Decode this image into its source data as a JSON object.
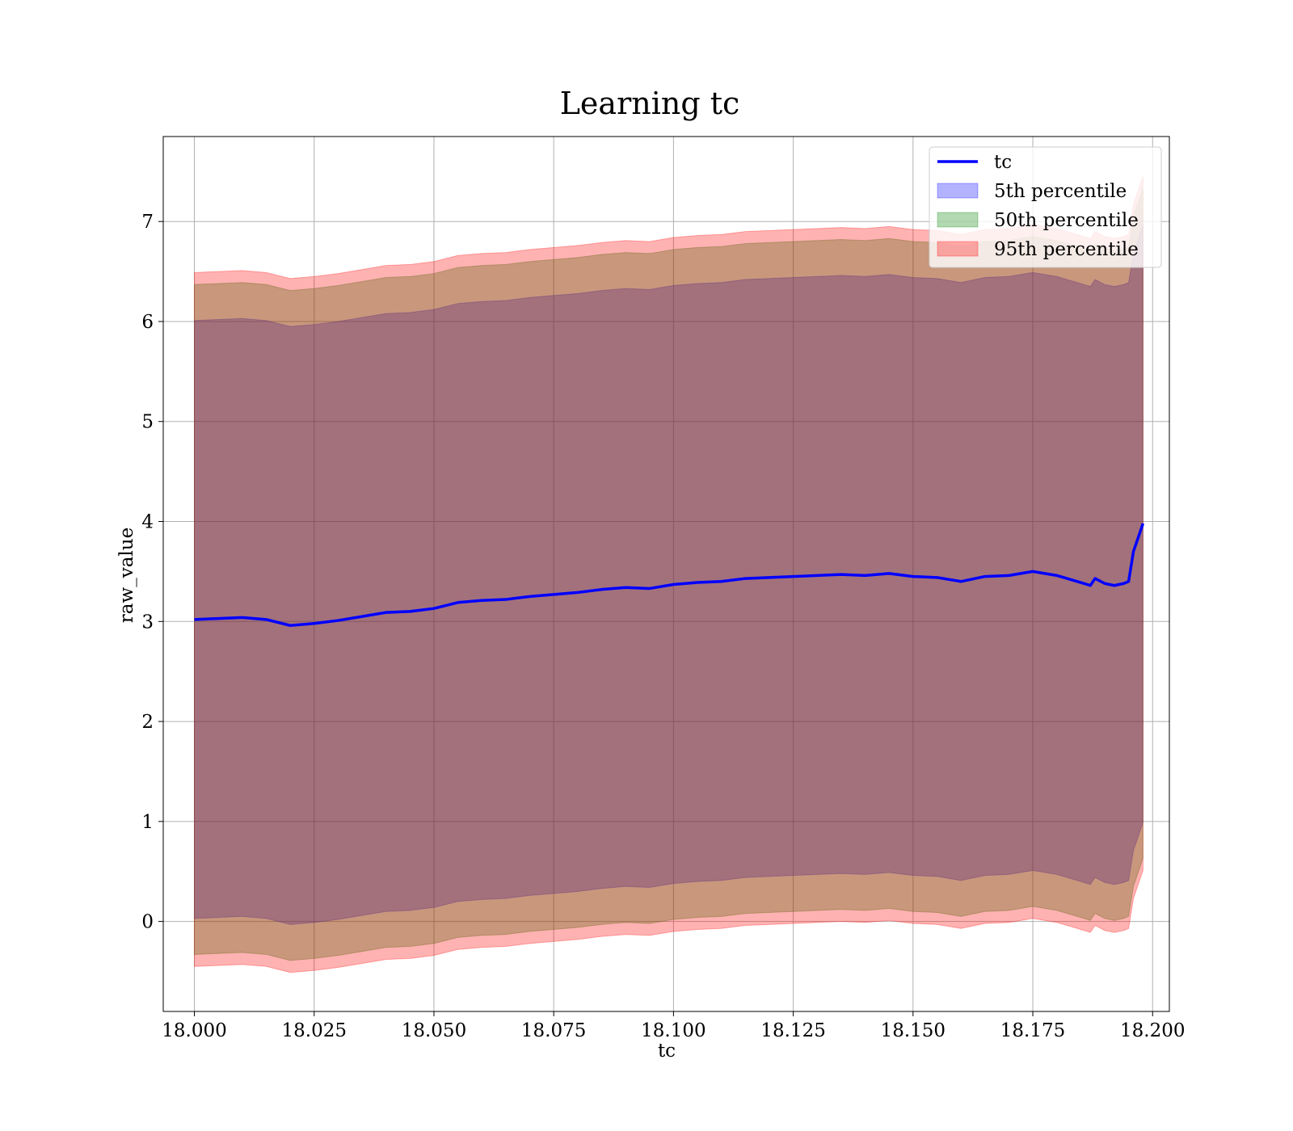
{
  "chart_data": {
    "type": "area",
    "title": "Learning tc",
    "xlabel": "tc",
    "ylabel": "raw_value",
    "xlim": [
      17.9935,
      18.2035
    ],
    "ylim": [
      -0.9,
      7.85
    ],
    "x_ticks": [
      18.0,
      18.025,
      18.05,
      18.075,
      18.1,
      18.125,
      18.15,
      18.175,
      18.2
    ],
    "x_tick_labels": [
      "18.000",
      "18.025",
      "18.050",
      "18.075",
      "18.100",
      "18.125",
      "18.150",
      "18.175",
      "18.200"
    ],
    "y_ticks": [
      0,
      1,
      2,
      3,
      4,
      5,
      6,
      7
    ],
    "y_tick_labels": [
      "0",
      "1",
      "2",
      "3",
      "4",
      "5",
      "6",
      "7"
    ],
    "grid": true,
    "legend_position": "top-right",
    "x": [
      18.0,
      18.005,
      18.01,
      18.015,
      18.02,
      18.025,
      18.03,
      18.035,
      18.04,
      18.045,
      18.05,
      18.055,
      18.06,
      18.065,
      18.07,
      18.075,
      18.08,
      18.085,
      18.09,
      18.095,
      18.1,
      18.105,
      18.11,
      18.115,
      18.12,
      18.125,
      18.13,
      18.135,
      18.14,
      18.145,
      18.15,
      18.155,
      18.16,
      18.165,
      18.17,
      18.175,
      18.18,
      18.185,
      18.187,
      18.188,
      18.19,
      18.192,
      18.194,
      18.195,
      18.196,
      18.198
    ],
    "series": [
      {
        "name": "tc",
        "kind": "line",
        "color": "#0000ff",
        "values": [
          3.02,
          3.03,
          3.04,
          3.02,
          2.96,
          2.98,
          3.01,
          3.05,
          3.09,
          3.1,
          3.13,
          3.19,
          3.21,
          3.22,
          3.25,
          3.27,
          3.29,
          3.32,
          3.34,
          3.33,
          3.37,
          3.39,
          3.4,
          3.43,
          3.44,
          3.45,
          3.46,
          3.47,
          3.46,
          3.48,
          3.45,
          3.44,
          3.4,
          3.45,
          3.46,
          3.5,
          3.46,
          3.39,
          3.36,
          3.43,
          3.38,
          3.36,
          3.38,
          3.4,
          3.7,
          3.98
        ]
      },
      {
        "name": "5th percentile",
        "kind": "band",
        "color": "#0000ff",
        "lower": [
          0.03,
          0.04,
          0.05,
          0.03,
          -0.03,
          -0.01,
          0.02,
          0.06,
          0.1,
          0.11,
          0.14,
          0.2,
          0.22,
          0.23,
          0.26,
          0.28,
          0.3,
          0.33,
          0.35,
          0.34,
          0.38,
          0.4,
          0.41,
          0.44,
          0.45,
          0.46,
          0.47,
          0.48,
          0.47,
          0.49,
          0.46,
          0.45,
          0.41,
          0.46,
          0.47,
          0.51,
          0.47,
          0.4,
          0.37,
          0.44,
          0.39,
          0.37,
          0.39,
          0.41,
          0.71,
          0.99
        ],
        "upper": [
          6.01,
          6.02,
          6.03,
          6.01,
          5.95,
          5.97,
          6.0,
          6.04,
          6.08,
          6.09,
          6.12,
          6.18,
          6.2,
          6.21,
          6.24,
          6.26,
          6.28,
          6.31,
          6.33,
          6.32,
          6.36,
          6.38,
          6.39,
          6.42,
          6.43,
          6.44,
          6.45,
          6.46,
          6.45,
          6.47,
          6.44,
          6.43,
          6.39,
          6.44,
          6.45,
          6.49,
          6.45,
          6.38,
          6.35,
          6.42,
          6.37,
          6.35,
          6.37,
          6.39,
          6.69,
          6.97
        ]
      },
      {
        "name": "50th percentile",
        "kind": "band",
        "color": "#008000",
        "lower": [
          -0.33,
          -0.32,
          -0.31,
          -0.33,
          -0.39,
          -0.37,
          -0.34,
          -0.3,
          -0.26,
          -0.25,
          -0.22,
          -0.16,
          -0.14,
          -0.13,
          -0.1,
          -0.08,
          -0.06,
          -0.03,
          -0.01,
          -0.02,
          0.02,
          0.04,
          0.05,
          0.08,
          0.09,
          0.1,
          0.11,
          0.12,
          0.11,
          0.13,
          0.1,
          0.09,
          0.05,
          0.1,
          0.11,
          0.15,
          0.11,
          0.04,
          0.01,
          0.08,
          0.03,
          0.01,
          0.03,
          0.05,
          0.35,
          0.63
        ],
        "upper": [
          6.37,
          6.38,
          6.39,
          6.37,
          6.31,
          6.33,
          6.36,
          6.4,
          6.44,
          6.45,
          6.48,
          6.54,
          6.56,
          6.57,
          6.6,
          6.62,
          6.64,
          6.67,
          6.69,
          6.68,
          6.72,
          6.74,
          6.75,
          6.78,
          6.79,
          6.8,
          6.81,
          6.82,
          6.81,
          6.83,
          6.8,
          6.79,
          6.75,
          6.8,
          6.81,
          6.85,
          6.81,
          6.74,
          6.71,
          6.78,
          6.73,
          6.71,
          6.73,
          6.75,
          7.05,
          7.33
        ]
      },
      {
        "name": "95th percentile",
        "kind": "band",
        "color": "#ff0000",
        "lower": [
          -0.45,
          -0.44,
          -0.43,
          -0.45,
          -0.51,
          -0.49,
          -0.46,
          -0.42,
          -0.38,
          -0.37,
          -0.34,
          -0.28,
          -0.26,
          -0.25,
          -0.22,
          -0.2,
          -0.18,
          -0.15,
          -0.13,
          -0.14,
          -0.1,
          -0.08,
          -0.07,
          -0.04,
          -0.03,
          -0.02,
          -0.01,
          0.0,
          -0.01,
          0.01,
          -0.02,
          -0.03,
          -0.07,
          -0.02,
          -0.01,
          0.03,
          -0.01,
          -0.08,
          -0.11,
          -0.04,
          -0.09,
          -0.11,
          -0.09,
          -0.07,
          0.23,
          0.51
        ],
        "upper": [
          6.49,
          6.5,
          6.51,
          6.49,
          6.43,
          6.45,
          6.48,
          6.52,
          6.56,
          6.57,
          6.6,
          6.66,
          6.68,
          6.69,
          6.72,
          6.74,
          6.76,
          6.79,
          6.81,
          6.8,
          6.84,
          6.86,
          6.87,
          6.9,
          6.91,
          6.92,
          6.93,
          6.94,
          6.93,
          6.95,
          6.92,
          6.91,
          6.87,
          6.92,
          6.93,
          6.97,
          6.93,
          6.86,
          6.83,
          6.9,
          6.85,
          6.83,
          6.85,
          6.87,
          7.17,
          7.45
        ]
      }
    ]
  }
}
